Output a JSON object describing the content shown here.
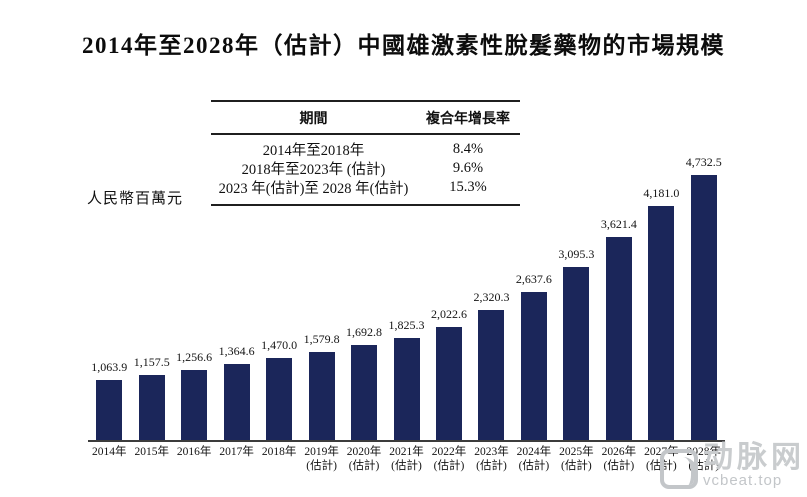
{
  "page": {
    "title": "2014年至2028年（估計）中國雄激素性脫髮藥物的市場規模"
  },
  "cagr_table": {
    "headers": [
      "期間",
      "複合年增長率"
    ],
    "rows": [
      {
        "period": "2014年至2018年",
        "cagr": "8.4%"
      },
      {
        "period": "2018年至2023年 (估計)",
        "cagr": "9.6%"
      },
      {
        "period": "2023 年(估計)至 2028 年(估計)",
        "cagr": "15.3%"
      }
    ]
  },
  "chart_data": {
    "type": "bar",
    "title": "2014年至2028年（估計）中國雄激素性脫髮藥物的市場規模",
    "xlabel": "",
    "ylabel": "人民幣百萬元",
    "unit": "人民幣百萬元",
    "categories": [
      "2014年",
      "2015年",
      "2016年",
      "2017年",
      "2018年",
      "2019年 (估計)",
      "2020年 (估計)",
      "2021年 (估計)",
      "2022年 (估計)",
      "2023年 (估計)",
      "2024年 (估計)",
      "2025年 (估計)",
      "2026年 (估計)",
      "2027年 (估計)",
      "2028年 (估計)"
    ],
    "x_years": [
      "2014年",
      "2015年",
      "2016年",
      "2017年",
      "2018年",
      "2019年",
      "2020年",
      "2021年",
      "2022年",
      "2023年",
      "2024年",
      "2025年",
      "2026年",
      "2027年",
      "2028年"
    ],
    "x_notes": [
      "",
      "",
      "",
      "",
      "",
      "(估計)",
      "(估計)",
      "(估計)",
      "(估計)",
      "(估計)",
      "(估計)",
      "(估計)",
      "(估計)",
      "(估計)",
      "(估計)"
    ],
    "values": [
      1063.9,
      1157.5,
      1256.6,
      1364.6,
      1470.0,
      1579.8,
      1692.8,
      1825.3,
      2022.6,
      2320.3,
      2637.6,
      3095.3,
      3621.4,
      4181.0,
      4732.5
    ],
    "value_labels": [
      "1,063.9",
      "1,157.5",
      "1,256.6",
      "1,364.6",
      "1,470.0",
      "1,579.8",
      "1,692.8",
      "1,825.3",
      "2,022.6",
      "2,320.3",
      "2,637.6",
      "3,095.3",
      "3,621.4",
      "4,181.0",
      "4,732.5"
    ],
    "bar_color": "#1B265A",
    "axis_color": "#3c3c3c",
    "ylim": [
      0,
      4732.5
    ],
    "grid": false,
    "legend": null
  },
  "watermark": {
    "name": "动脉网",
    "url": "vcbeat.top"
  }
}
